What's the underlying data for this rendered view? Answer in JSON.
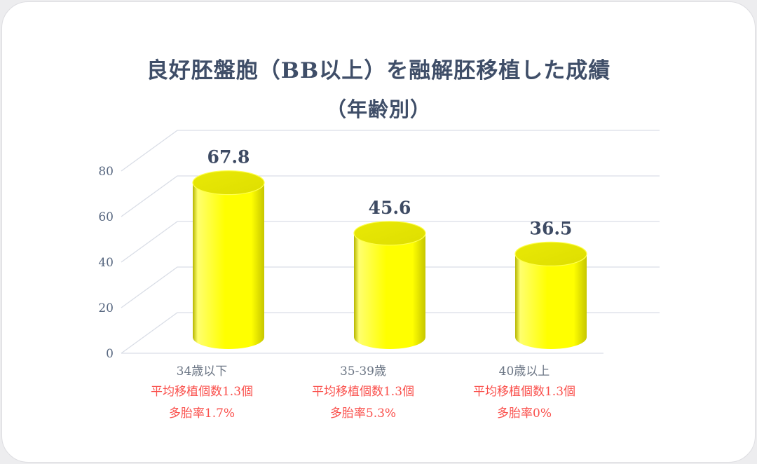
{
  "title": {
    "line1": "良好胚盤胞（BB以上）を融解胚移植した成績",
    "line2": "（年齢別）"
  },
  "chart_data": {
    "type": "bar",
    "subtype": "cylinder-3d",
    "title": "良好胚盤胞（BB以上）を融解胚移植した成績（年齢別）",
    "categories": [
      "34歳以下",
      "35-39歳",
      "40歳以上"
    ],
    "values": [
      67.8,
      45.6,
      36.5
    ],
    "value_labels": [
      "67.8",
      "45.6",
      "36.5"
    ],
    "annotations": [
      {
        "line1": "平均移植個数1.3個",
        "line2": "多胎率1.7%"
      },
      {
        "line1": "平均移植個数1.3個",
        "line2": "多胎率5.3%"
      },
      {
        "line1": "平均移植個数1.3個",
        "line2": "多胎率0%"
      }
    ],
    "xlabel": "",
    "ylabel": "",
    "y_axis": {
      "min": 0,
      "max": 80,
      "step": 20,
      "ticks": [
        "0",
        "20",
        "40",
        "60",
        "80"
      ]
    },
    "grid": true,
    "legend": false,
    "colors": {
      "bar_fill": "#ffff00",
      "bar_highlight": "#ffff6e",
      "bar_shadow": "#c6c600",
      "bar_edge_dark": "#b5b500",
      "bar_top": "#e9e906",
      "bar_top_dark": "#dede00",
      "bar_top_rim": "#ffff4d",
      "grid": "#d9dde6",
      "value_text": "#3d4a63",
      "tick_text": "#56667f",
      "category_text": "#6b7584",
      "annotation_text": "#fa4f4b",
      "title_text": "#3f4e68"
    }
  }
}
